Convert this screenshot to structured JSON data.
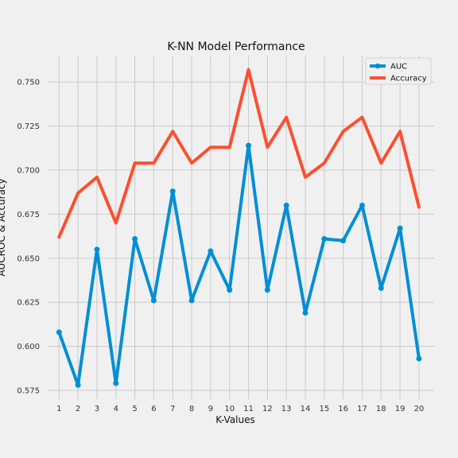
{
  "chart_data": {
    "type": "line",
    "title": "K-NN Model Performance",
    "xlabel": "K-Values",
    "ylabel": "AUCROC & Accuracy",
    "x": [
      1,
      2,
      3,
      4,
      5,
      6,
      7,
      8,
      9,
      10,
      11,
      12,
      13,
      14,
      15,
      16,
      17,
      18,
      19,
      20
    ],
    "xlim": [
      0.4,
      20.8
    ],
    "ylim": [
      0.57,
      0.765
    ],
    "yticks": [
      "0.575",
      "0.600",
      "0.625",
      "0.650",
      "0.675",
      "0.700",
      "0.725",
      "0.750"
    ],
    "grid": true,
    "legend_position": "top-right",
    "series": [
      {
        "name": "AUC",
        "color": "#008fd5",
        "marker": "circle",
        "values": [
          0.608,
          0.578,
          0.655,
          0.579,
          0.661,
          0.626,
          0.688,
          0.626,
          0.654,
          0.632,
          0.714,
          0.632,
          0.68,
          0.619,
          0.661,
          0.66,
          0.68,
          0.633,
          0.667,
          0.593
        ]
      },
      {
        "name": "Accuracy",
        "color": "#fc4f30",
        "marker": "none",
        "values": [
          0.662,
          0.687,
          0.696,
          0.67,
          0.704,
          0.704,
          0.722,
          0.704,
          0.713,
          0.713,
          0.757,
          0.713,
          0.73,
          0.696,
          0.704,
          0.722,
          0.73,
          0.704,
          0.722,
          0.679
        ]
      }
    ]
  }
}
